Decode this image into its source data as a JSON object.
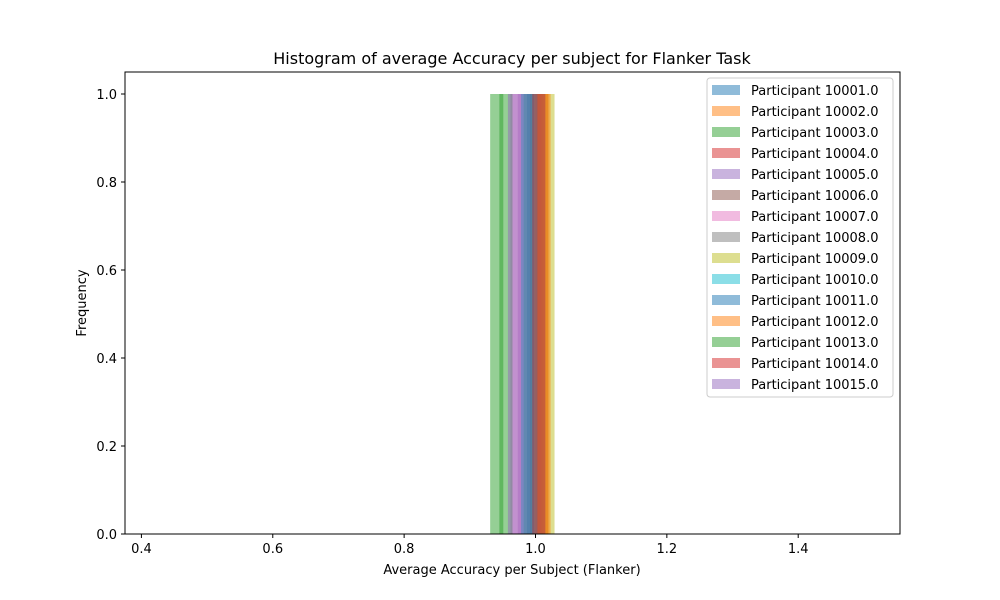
{
  "chart_data": {
    "type": "bar",
    "title": "Histogram of average Accuracy per subject for Flanker Task",
    "xlabel": "Average Accuracy per Subject (Flanker)",
    "ylabel": "Frequency",
    "xlim": [
      0.375,
      1.555
    ],
    "ylim": [
      0,
      1.05
    ],
    "xticks": [
      0.4,
      0.6,
      0.8,
      1.0,
      1.2,
      1.4
    ],
    "xtick_labels": [
      "0.4",
      "0.6",
      "0.8",
      "1.0",
      "1.2",
      "1.4"
    ],
    "yticks": [
      0.0,
      0.2,
      0.4,
      0.6,
      0.8,
      1.0
    ],
    "ytick_labels": [
      "0.0",
      "0.2",
      "0.4",
      "0.6",
      "0.8",
      "1.0"
    ],
    "grid": false,
    "legend_position": "top-right",
    "bar_opacity": 0.5,
    "series": [
      {
        "name": "Participant 10001.0",
        "color": "#1f77b4",
        "bins": [
          {
            "x0": 0.987,
            "x1": 1.007,
            "count": 1
          }
        ]
      },
      {
        "name": "Participant 10002.0",
        "color": "#ff7f0e",
        "bins": [
          {
            "x0": 0.999,
            "x1": 1.019,
            "count": 1
          }
        ]
      },
      {
        "name": "Participant 10003.0",
        "color": "#2ca02c",
        "bins": [
          {
            "x0": 0.931,
            "x1": 0.951,
            "count": 1
          }
        ]
      },
      {
        "name": "Participant 10004.0",
        "color": "#d62728",
        "bins": [
          {
            "x0": 1.0,
            "x1": 1.02,
            "count": 1
          }
        ]
      },
      {
        "name": "Participant 10005.0",
        "color": "#9467bd",
        "bins": [
          {
            "x0": 0.973,
            "x1": 0.993,
            "count": 1
          }
        ]
      },
      {
        "name": "Participant 10006.0",
        "color": "#8c564b",
        "bins": [
          {
            "x0": 0.992,
            "x1": 1.012,
            "count": 1
          }
        ]
      },
      {
        "name": "Participant 10007.0",
        "color": "#e377c2",
        "bins": [
          {
            "x0": 0.962,
            "x1": 0.982,
            "count": 1
          }
        ]
      },
      {
        "name": "Participant 10008.0",
        "color": "#7f7f7f",
        "bins": [
          {
            "x0": 0.982,
            "x1": 1.002,
            "count": 1
          }
        ]
      },
      {
        "name": "Participant 10009.0",
        "color": "#bcbd22",
        "bins": [
          {
            "x0": 1.009,
            "x1": 1.029,
            "count": 1
          }
        ]
      },
      {
        "name": "Participant 10010.0",
        "color": "#17becf",
        "bins": [
          {
            "x0": 0.995,
            "x1": 1.015,
            "count": 1
          }
        ]
      },
      {
        "name": "Participant 10011.0",
        "color": "#1f77b4",
        "bins": [
          {
            "x0": 0.978,
            "x1": 0.998,
            "count": 1
          }
        ]
      },
      {
        "name": "Participant 10012.0",
        "color": "#ff7f0e",
        "bins": [
          {
            "x0": 1.003,
            "x1": 1.023,
            "count": 1
          }
        ]
      },
      {
        "name": "Participant 10013.0",
        "color": "#2ca02c",
        "bins": [
          {
            "x0": 0.945,
            "x1": 0.965,
            "count": 1
          }
        ]
      },
      {
        "name": "Participant 10014.0",
        "color": "#d62728",
        "bins": [
          {
            "x0": 0.995,
            "x1": 1.015,
            "count": 1
          }
        ]
      },
      {
        "name": "Participant 10015.0",
        "color": "#9467bd",
        "bins": [
          {
            "x0": 0.958,
            "x1": 0.978,
            "count": 1
          }
        ]
      }
    ]
  }
}
